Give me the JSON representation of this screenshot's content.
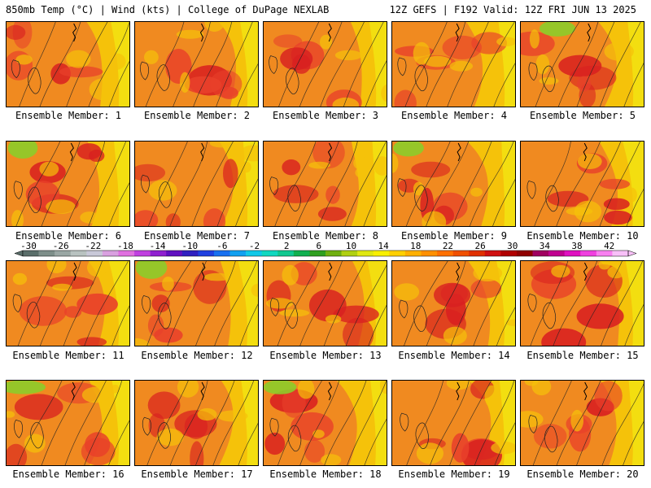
{
  "header": {
    "title_left": "850mb Temp (°C) | Wind (kts) | College of DuPage NEXLAB",
    "title_right": "12Z GEFS | F192 Valid: 12Z FRI JUN 13 2025"
  },
  "panels": [
    {
      "label": "Ensemble Member: 1",
      "member": 1
    },
    {
      "label": "Ensemble Member: 2",
      "member": 2
    },
    {
      "label": "Ensemble Member: 3",
      "member": 3
    },
    {
      "label": "Ensemble Member: 4",
      "member": 4
    },
    {
      "label": "Ensemble Member: 5",
      "member": 5
    },
    {
      "label": "Ensemble Member: 6",
      "member": 6
    },
    {
      "label": "Ensemble Member: 7",
      "member": 7
    },
    {
      "label": "Ensemble Member: 8",
      "member": 8
    },
    {
      "label": "Ensemble Member: 9",
      "member": 9
    },
    {
      "label": "Ensemble Member: 10",
      "member": 10
    },
    {
      "label": "Ensemble Member: 11",
      "member": 11
    },
    {
      "label": "Ensemble Member: 12",
      "member": 12
    },
    {
      "label": "Ensemble Member: 13",
      "member": 13
    },
    {
      "label": "Ensemble Member: 14",
      "member": 14
    },
    {
      "label": "Ensemble Member: 15",
      "member": 15
    },
    {
      "label": "Ensemble Member: 16",
      "member": 16
    },
    {
      "label": "Ensemble Member: 17",
      "member": 17
    },
    {
      "label": "Ensemble Member: 18",
      "member": 18
    },
    {
      "label": "Ensemble Member: 19",
      "member": 19
    },
    {
      "label": "Ensemble Member: 20",
      "member": 20
    }
  ],
  "colorbar": {
    "ticks": [
      "-30",
      "-26",
      "-22",
      "-18",
      "-14",
      "-10",
      "-6",
      "-2",
      "2",
      "6",
      "10",
      "14",
      "18",
      "22",
      "26",
      "30",
      "34",
      "38",
      "42"
    ],
    "colors": [
      "#5a6e6a",
      "#7e8f8a",
      "#9aa7a4",
      "#b8c2c0",
      "#c8c8d8",
      "#d9a0e0",
      "#e070e0",
      "#c040e0",
      "#9020d0",
      "#6010c0",
      "#3020c0",
      "#2040e0",
      "#1870f0",
      "#10a0f0",
      "#10c8e8",
      "#10d8c0",
      "#10c890",
      "#10b050",
      "#30a020",
      "#70b010",
      "#b0d010",
      "#e0e810",
      "#f8f000",
      "#ffd000",
      "#ffb000",
      "#ff9000",
      "#ff7000",
      "#f05000",
      "#e03000",
      "#d01010",
      "#b00000",
      "#900000",
      "#a00060",
      "#c00090",
      "#e010c0",
      "#f040e0",
      "#f880f0",
      "#f8c0f8"
    ]
  },
  "map_colors": {
    "warm": "#f08a20",
    "hot": "#e8402a",
    "veryhot": "#d81f20",
    "mild": "#f5c20a",
    "cool": "#f2e312",
    "green": "#8ccc2a"
  }
}
